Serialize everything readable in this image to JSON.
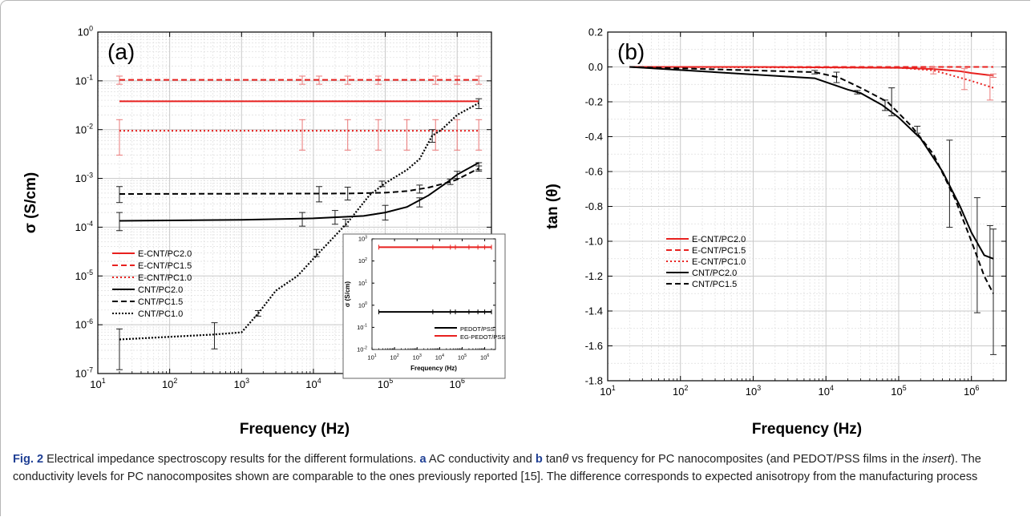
{
  "caption": {
    "label": "Fig. 2",
    "p1": " Electrical impedance spectroscopy results for the different formulations. ",
    "a": "a",
    "p2": " AC conductivity and ",
    "b": "b",
    "p3": " tan",
    "theta": "θ",
    "p4": " vs frequency for PC nanocomposites (and PEDOT/PSS films in the ",
    "insert": "insert",
    "p5": "). The conductivity levels for PC nanocomposites shown are comparable to the ones previously reported [15]. The difference corresponds to expected anisotropy from the manufacturing process"
  },
  "colors": {
    "red": "#e8211f",
    "pink": "#ea7878",
    "black": "#000000",
    "grid": "#c8c8c8",
    "minorgrid": "#dedede"
  },
  "chart_data": [
    {
      "id": "a",
      "type": "line",
      "panel_label": "(a)",
      "xlabel": "Frequency (Hz)",
      "ylabel": "σ (S/cm)",
      "x_scale": "log",
      "y_scale": "log",
      "xlim": [
        10,
        3000000
      ],
      "ylim": [
        1e-07,
        1
      ],
      "x_ticks": [
        10,
        100,
        1000,
        10000,
        100000,
        1000000
      ],
      "y_ticks": [
        1e-07,
        1e-06,
        1e-05,
        0.0001,
        0.001,
        0.01,
        0.1,
        1
      ],
      "grid": true,
      "legend_position": "left",
      "series": [
        {
          "name": "E-CNT/PC2.0",
          "color": "#e8211f",
          "dash": "solid",
          "x": [
            20,
            2000000
          ],
          "y": [
            0.038,
            0.038
          ]
        },
        {
          "name": "E-CNT/PC1.5",
          "color": "#e8211f",
          "dash": "dashed",
          "x": [
            20,
            2000000
          ],
          "y": [
            0.105,
            0.105
          ],
          "errors": {
            "x": [
              20,
              7000,
              12000,
              30000,
              80000,
              500000,
              1000000,
              2000000
            ],
            "y": [
              0.105,
              0.105,
              0.105,
              0.105,
              0.105,
              0.105,
              0.105,
              0.105
            ],
            "lo": [
              0.085,
              0.085,
              0.085,
              0.085,
              0.085,
              0.085,
              0.085,
              0.085
            ],
            "hi": [
              0.125,
              0.125,
              0.125,
              0.125,
              0.125,
              0.125,
              0.125,
              0.125
            ]
          }
        },
        {
          "name": "E-CNT/PC1.0",
          "color": "#e8211f",
          "dash": "dotted",
          "x": [
            20,
            2000000
          ],
          "y": [
            0.0095,
            0.0095
          ],
          "errors": {
            "x": [
              20,
              7000,
              30000,
              80000,
              200000,
              500000,
              1000000,
              2000000
            ],
            "y": [
              0.0095,
              0.0095,
              0.0095,
              0.0095,
              0.0095,
              0.0095,
              0.0095,
              0.0095
            ],
            "lo": [
              0.003,
              0.0038,
              0.0038,
              0.0038,
              0.0038,
              0.0038,
              0.0038,
              0.0038
            ],
            "hi": [
              0.016,
              0.016,
              0.016,
              0.016,
              0.016,
              0.016,
              0.016,
              0.016
            ]
          }
        },
        {
          "name": "CNT/PC2.0",
          "color": "#000000",
          "dash": "solid",
          "x": [
            20,
            1000,
            10000,
            50000,
            100000,
            200000,
            400000,
            700000,
            1000000,
            2000000
          ],
          "y": [
            0.000135,
            0.000142,
            0.000152,
            0.00017,
            0.0002,
            0.00026,
            0.00045,
            0.0008,
            0.0012,
            0.0021
          ],
          "errors": {
            "x": [
              20,
              7000,
              20000,
              100000,
              300000,
              1000000,
              2000000
            ],
            "y": [
              0.000135,
              0.00015,
              0.00016,
              0.0002,
              0.00033,
              0.0012,
              0.0018
            ],
            "lo": [
              8.5e-05,
              0.000105,
              0.000115,
              0.00014,
              0.00026,
              0.001,
              0.0015
            ],
            "hi": [
              0.0002,
              0.0002,
              0.00022,
              0.00028,
              0.0004,
              0.0014,
              0.0021
            ]
          }
        },
        {
          "name": "CNT/PC1.5",
          "color": "#000000",
          "dash": "dashed",
          "x": [
            20,
            30000,
            100000,
            200000,
            400000,
            800000,
            1000000,
            2000000
          ],
          "y": [
            0.00048,
            0.00049,
            0.00051,
            0.00055,
            0.00065,
            0.00085,
            0.00095,
            0.0016
          ],
          "errors": {
            "x": [
              20,
              12000,
              30000,
              300000,
              800000,
              2000000
            ],
            "y": [
              0.00048,
              0.00049,
              0.00049,
              0.0006,
              0.00085,
              0.0016
            ],
            "lo": [
              0.00032,
              0.00033,
              0.00036,
              0.0005,
              0.00075,
              0.0014
            ],
            "hi": [
              0.00068,
              0.00068,
              0.00066,
              0.00073,
              0.00097,
              0.0018
            ]
          }
        },
        {
          "name": "CNT/PC1.0",
          "color": "#000000",
          "dash": "dotted-thick",
          "x": [
            20,
            400,
            1000,
            1700,
            3000,
            6000,
            12000,
            30000,
            60000,
            100000,
            200000,
            300000,
            450000,
            600000,
            1000000,
            2000000
          ],
          "y": [
            5e-07,
            6.3e-07,
            7e-07,
            1.7e-06,
            5e-06,
            1e-05,
            3e-05,
            0.000125,
            0.00045,
            0.0008,
            0.0015,
            0.0025,
            0.0075,
            0.0098,
            0.02,
            0.035
          ],
          "errors": {
            "x": [
              20,
              420,
              1700,
              11000,
              28000,
              90000,
              450000,
              2000000
            ],
            "y": [
              5e-07,
              7e-07,
              1.7e-06,
              3e-05,
              0.000125,
              0.00078,
              0.0078,
              0.035
            ],
            "lo": [
              1.2e-07,
              3.2e-07,
              1.5e-06,
              2.5e-05,
              0.000105,
              0.00068,
              0.0055,
              0.027
            ],
            "hi": [
              8.2e-07,
              1.1e-06,
              1.95e-06,
              3.5e-05,
              0.000145,
              0.00088,
              0.01,
              0.043
            ]
          }
        }
      ],
      "inset": {
        "type": "line",
        "xlabel": "Frequency (Hz)",
        "ylabel": "σ (S/cm)",
        "x_scale": "log",
        "y_scale": "log",
        "xlim": [
          10,
          3000000
        ],
        "ylim": [
          0.01,
          1000
        ],
        "x_ticks": [
          10,
          100,
          1000,
          10000,
          100000,
          1000000
        ],
        "y_ticks": [
          0.01,
          0.1,
          1,
          10,
          100,
          1000
        ],
        "legend_position": "bottom-right",
        "series": [
          {
            "name": "PEDOT/PSS",
            "color": "#000000",
            "x": [
              20,
              2000000
            ],
            "y": [
              0.5,
              0.5
            ],
            "markers": [
              20,
              5000,
              30000,
              50000,
              200000,
              500000,
              1000000,
              2000000
            ]
          },
          {
            "name": "EG-PEDOT/PSS",
            "color": "#e8211f",
            "x": [
              20,
              2000000
            ],
            "y": [
              420,
              420
            ],
            "markers": [
              20,
              5000,
              30000,
              50000,
              200000,
              500000,
              1000000,
              2000000
            ]
          }
        ]
      }
    },
    {
      "id": "b",
      "type": "line",
      "panel_label": "(b)",
      "xlabel": "Frequency (Hz)",
      "ylabel": "tan (θ)",
      "x_scale": "log",
      "y_scale": "linear",
      "xlim": [
        10,
        3000000
      ],
      "ylim": [
        -1.8,
        0.2
      ],
      "x_ticks": [
        10,
        100,
        1000,
        10000,
        100000,
        1000000
      ],
      "y_ticks": [
        -1.8,
        -1.6,
        -1.4,
        -1.2,
        -1.0,
        -0.8,
        -0.6,
        -0.4,
        -0.2,
        0.0,
        0.2
      ],
      "y_tick_labels": [
        "-1.8",
        "-1.6",
        "-1.4",
        "-1.2",
        "-1.0",
        "-0.8",
        "-0.6",
        "-0.4",
        "-0.2",
        "0.0",
        "0.2"
      ],
      "grid": true,
      "legend_position": "bottom-left",
      "series": [
        {
          "name": "E-CNT/PC2.0",
          "color": "#e8211f",
          "dash": "solid",
          "x": [
            20,
            1000,
            100000,
            300000,
            700000,
            1000000,
            2000000
          ],
          "y": [
            0.0,
            0.0,
            -0.005,
            -0.012,
            -0.025,
            -0.035,
            -0.05
          ],
          "errors": {
            "x": [
              2000000
            ],
            "y": [
              -0.05
            ],
            "lo": [
              -0.06
            ],
            "hi": [
              -0.04
            ]
          }
        },
        {
          "name": "E-CNT/PC1.5",
          "color": "#e8211f",
          "dash": "dashed",
          "x": [
            20,
            2000000
          ],
          "y": [
            0.0,
            0.0
          ]
        },
        {
          "name": "E-CNT/PC1.0",
          "color": "#e8211f",
          "dash": "dotted",
          "x": [
            20,
            100000,
            300000,
            500000,
            1000000,
            2000000
          ],
          "y": [
            0.0,
            -0.005,
            -0.02,
            -0.045,
            -0.08,
            -0.12
          ],
          "errors": {
            "x": [
              300000,
              800000,
              1800000
            ],
            "y": [
              -0.02,
              -0.07,
              -0.12
            ],
            "lo": [
              -0.04,
              -0.13,
              -0.19
            ],
            "hi": [
              0.0,
              -0.01,
              -0.05
            ]
          }
        },
        {
          "name": "CNT/PC2.0",
          "color": "#000000",
          "dash": "solid",
          "x": [
            20,
            7000,
            20000,
            30000,
            60000,
            100000,
            200000,
            400000,
            700000,
            1000000,
            1500000,
            2000000
          ],
          "y": [
            0.0,
            -0.065,
            -0.13,
            -0.15,
            -0.22,
            -0.29,
            -0.41,
            -0.6,
            -0.8,
            -0.95,
            -1.08,
            -1.1
          ],
          "errors": {
            "x": [
              27000,
              65000,
              180000,
              500000,
              1200000,
              1800000,
              2000000
            ],
            "y": [
              -0.145,
              -0.22,
              -0.36,
              -0.67,
              -1.08,
              -1.09,
              -1.1
            ],
            "lo": [
              -0.155,
              -0.25,
              -0.38,
              -0.92,
              -1.41,
              -1.2,
              -1.65
            ],
            "hi": [
              -0.135,
              -0.19,
              -0.34,
              -0.42,
              -0.75,
              -0.91,
              -0.93
            ]
          }
        },
        {
          "name": "CNT/PC1.5",
          "color": "#000000",
          "dash": "dashed",
          "x": [
            20,
            7000,
            15000,
            30000,
            70000,
            150000,
            300000,
            600000,
            1000000,
            1500000,
            2000000
          ],
          "y": [
            0.0,
            -0.03,
            -0.06,
            -0.12,
            -0.2,
            -0.34,
            -0.5,
            -0.76,
            -1.0,
            -1.2,
            -1.3
          ],
          "errors": {
            "x": [
              7000,
              14000,
              80000
            ],
            "y": [
              -0.03,
              -0.06,
              -0.2
            ],
            "lo": [
              -0.04,
              -0.09,
              -0.28
            ],
            "hi": [
              -0.02,
              -0.03,
              -0.12
            ]
          }
        }
      ]
    }
  ]
}
